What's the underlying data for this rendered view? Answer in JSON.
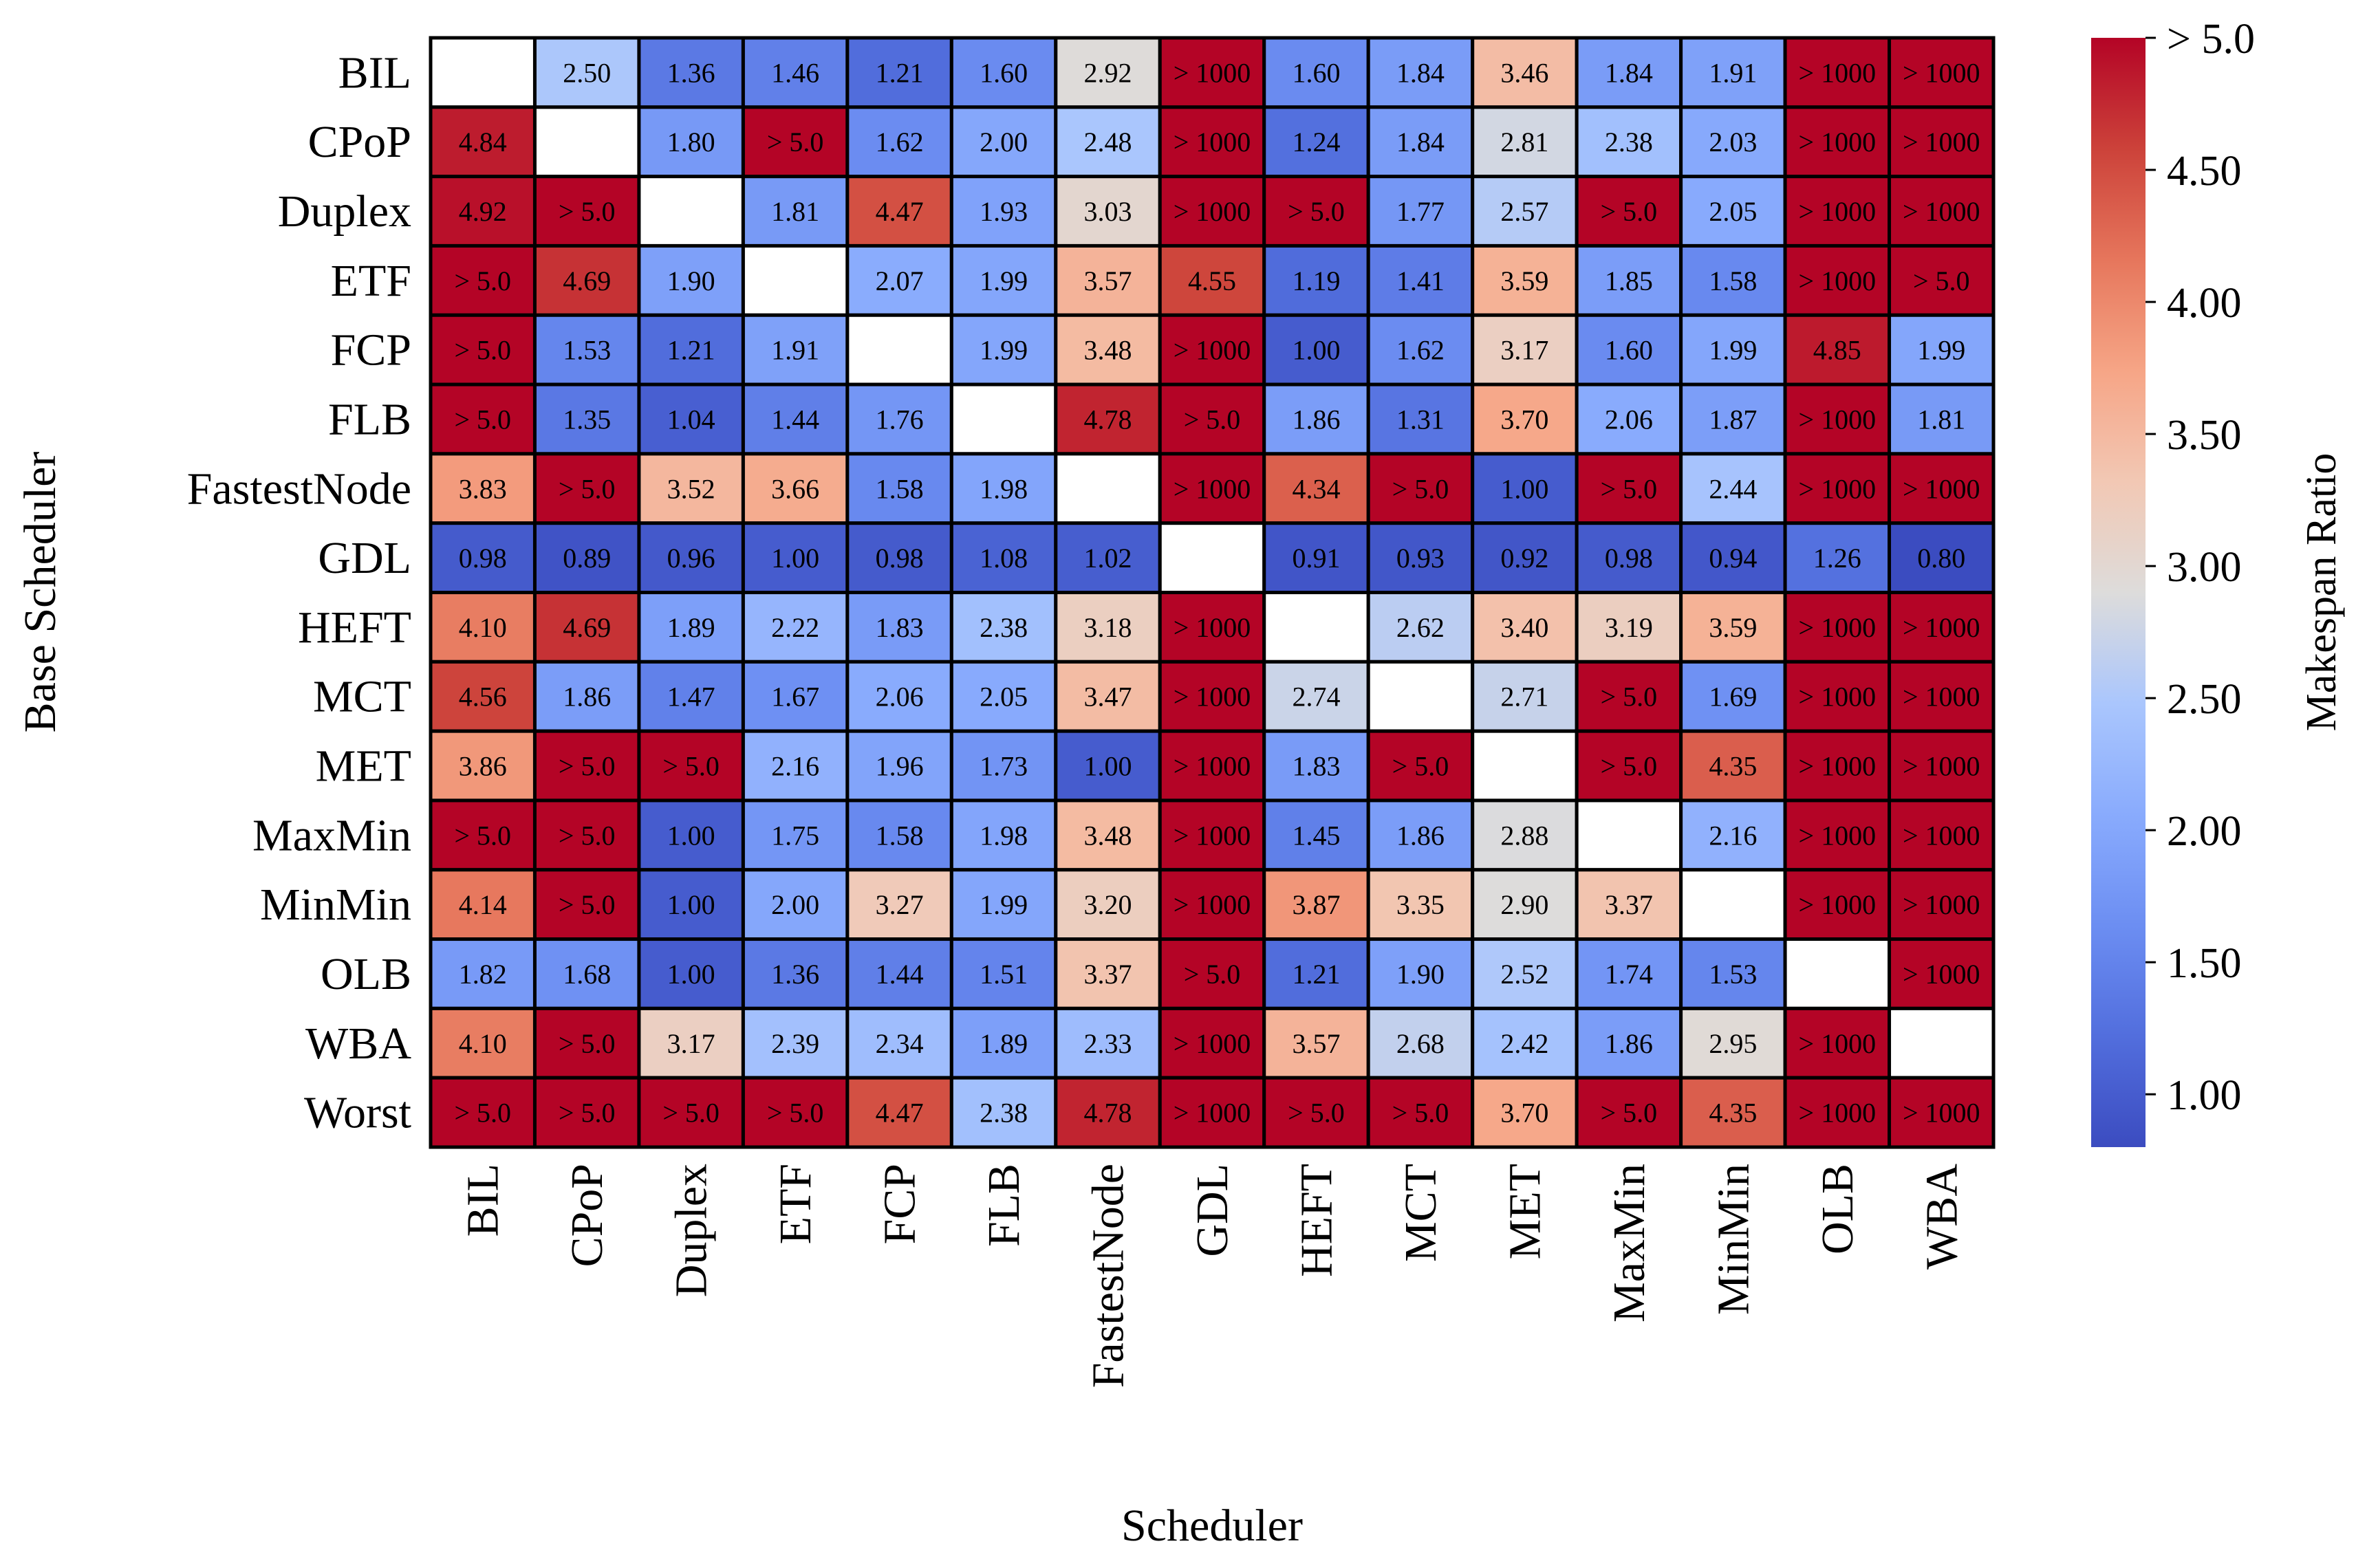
{
  "chart_data": {
    "type": "heatmap",
    "xlabel": "Scheduler",
    "ylabel": "Base Scheduler",
    "colorbar_label": "Makespan Ratio",
    "colormap": "coolwarm",
    "color_range": [
      0.8,
      5.0
    ],
    "colorbar_ticks": [
      1.0,
      1.5,
      2.0,
      2.5,
      3.0,
      3.5,
      4.0,
      4.5,
      5.0
    ],
    "colorbar_tick_labels": [
      "1.00",
      "1.50",
      "2.00",
      "2.50",
      "3.00",
      "3.50",
      "4.00",
      "4.50",
      "> 5.0"
    ],
    "columns": [
      "BIL",
      "CPoP",
      "Duplex",
      "ETF",
      "FCP",
      "FLB",
      "FastestNode",
      "GDL",
      "HEFT",
      "MCT",
      "MET",
      "MaxMin",
      "MinMin",
      "OLB",
      "WBA"
    ],
    "rows": [
      "BIL",
      "CPoP",
      "Duplex",
      "ETF",
      "FCP",
      "FLB",
      "FastestNode",
      "GDL",
      "HEFT",
      "MCT",
      "MET",
      "MaxMin",
      "MinMin",
      "OLB",
      "WBA",
      "Worst"
    ],
    "values": [
      [
        null,
        2.5,
        1.36,
        1.46,
        1.21,
        1.6,
        2.92,
        "> 1000",
        1.6,
        1.84,
        3.46,
        1.84,
        1.91,
        "> 1000",
        "> 1000"
      ],
      [
        4.84,
        null,
        1.8,
        "> 5.0",
        1.62,
        2.0,
        2.48,
        "> 1000",
        1.24,
        1.84,
        2.81,
        2.38,
        2.03,
        "> 1000",
        "> 1000"
      ],
      [
        4.92,
        "> 5.0",
        null,
        1.81,
        4.47,
        1.93,
        3.03,
        "> 1000",
        "> 5.0",
        1.77,
        2.57,
        "> 5.0",
        2.05,
        "> 1000",
        "> 1000"
      ],
      [
        "> 5.0",
        4.69,
        1.9,
        null,
        2.07,
        1.99,
        3.57,
        4.55,
        1.19,
        1.41,
        3.59,
        1.85,
        1.58,
        "> 1000",
        "> 5.0"
      ],
      [
        "> 5.0",
        1.53,
        1.21,
        1.91,
        null,
        1.99,
        3.48,
        "> 1000",
        1.0,
        1.62,
        3.17,
        1.6,
        1.99,
        4.85,
        1.99
      ],
      [
        "> 5.0",
        1.35,
        1.04,
        1.44,
        1.76,
        null,
        4.78,
        "> 5.0",
        1.86,
        1.31,
        3.7,
        2.06,
        1.87,
        "> 1000",
        1.81
      ],
      [
        3.83,
        "> 5.0",
        3.52,
        3.66,
        1.58,
        1.98,
        null,
        "> 1000",
        4.34,
        "> 5.0",
        1.0,
        "> 5.0",
        2.44,
        "> 1000",
        "> 1000"
      ],
      [
        0.98,
        0.89,
        0.96,
        1.0,
        0.98,
        1.08,
        1.02,
        null,
        0.91,
        0.93,
        0.92,
        0.98,
        0.94,
        1.26,
        0.8
      ],
      [
        4.1,
        4.69,
        1.89,
        2.22,
        1.83,
        2.38,
        3.18,
        "> 1000",
        null,
        2.62,
        3.4,
        3.19,
        3.59,
        "> 1000",
        "> 1000"
      ],
      [
        4.56,
        1.86,
        1.47,
        1.67,
        2.06,
        2.05,
        3.47,
        "> 1000",
        2.74,
        null,
        2.71,
        "> 5.0",
        1.69,
        "> 1000",
        "> 1000"
      ],
      [
        3.86,
        "> 5.0",
        "> 5.0",
        2.16,
        1.96,
        1.73,
        1.0,
        "> 1000",
        1.83,
        "> 5.0",
        null,
        "> 5.0",
        4.35,
        "> 1000",
        "> 1000"
      ],
      [
        "> 5.0",
        "> 5.0",
        1.0,
        1.75,
        1.58,
        1.98,
        3.48,
        "> 1000",
        1.45,
        1.86,
        2.88,
        null,
        2.16,
        "> 1000",
        "> 1000"
      ],
      [
        4.14,
        "> 5.0",
        1.0,
        2.0,
        3.27,
        1.99,
        3.2,
        "> 1000",
        3.87,
        3.35,
        2.9,
        3.37,
        null,
        "> 1000",
        "> 1000"
      ],
      [
        1.82,
        1.68,
        1.0,
        1.36,
        1.44,
        1.51,
        3.37,
        "> 5.0",
        1.21,
        1.9,
        2.52,
        1.74,
        1.53,
        null,
        "> 1000"
      ],
      [
        4.1,
        "> 5.0",
        3.17,
        2.39,
        2.34,
        1.89,
        2.33,
        "> 1000",
        3.57,
        2.68,
        2.42,
        1.86,
        2.95,
        "> 1000",
        null
      ],
      [
        "> 5.0",
        "> 5.0",
        "> 5.0",
        "> 5.0",
        4.47,
        2.38,
        4.78,
        "> 1000",
        "> 5.0",
        "> 5.0",
        3.7,
        "> 5.0",
        4.35,
        "> 1000",
        "> 1000"
      ]
    ]
  }
}
